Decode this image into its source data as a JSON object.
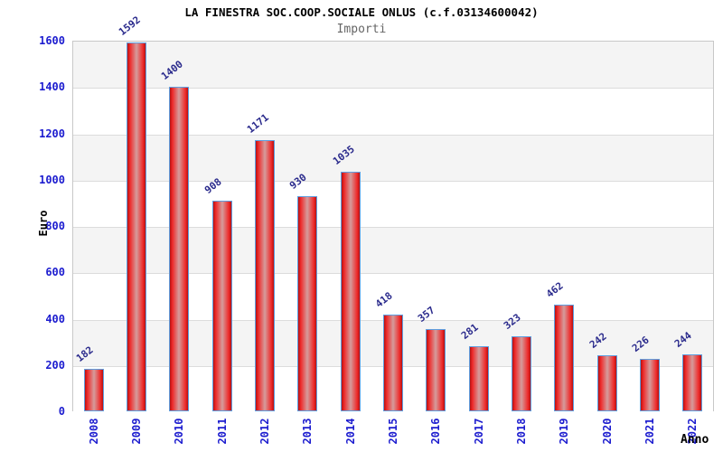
{
  "chart_data": {
    "type": "bar",
    "title": "LA FINESTRA SOC.COOP.SOCIALE ONLUS (c.f.03134600042)",
    "subtitle": "Importi",
    "xlabel": "Anno",
    "ylabel": "Euro",
    "categories": [
      "2008",
      "2009",
      "2010",
      "2011",
      "2012",
      "2013",
      "2014",
      "2015",
      "2016",
      "2017",
      "2018",
      "2019",
      "2020",
      "2021",
      "2022"
    ],
    "values": [
      182,
      1592,
      1400,
      908,
      1171,
      930,
      1035,
      418,
      357,
      281,
      323,
      462,
      242,
      226,
      244
    ],
    "ylim": [
      0,
      1600
    ],
    "ytick_step": 200,
    "grid": "horizontal-bands-alternating",
    "legend": "none",
    "colors": {
      "bar_edge": "#b51111",
      "bar_main": "#ee2a2a",
      "bar_center": "#d59c9c",
      "bar_border": "#5e9fe0",
      "axis_tick_label": "#1c1ccf",
      "value_label": "#2a2a8c",
      "band_gray": "#f4f4f4",
      "band_white": "#ffffff",
      "title_color": "#000000",
      "subtitle_color": "#666666"
    }
  }
}
